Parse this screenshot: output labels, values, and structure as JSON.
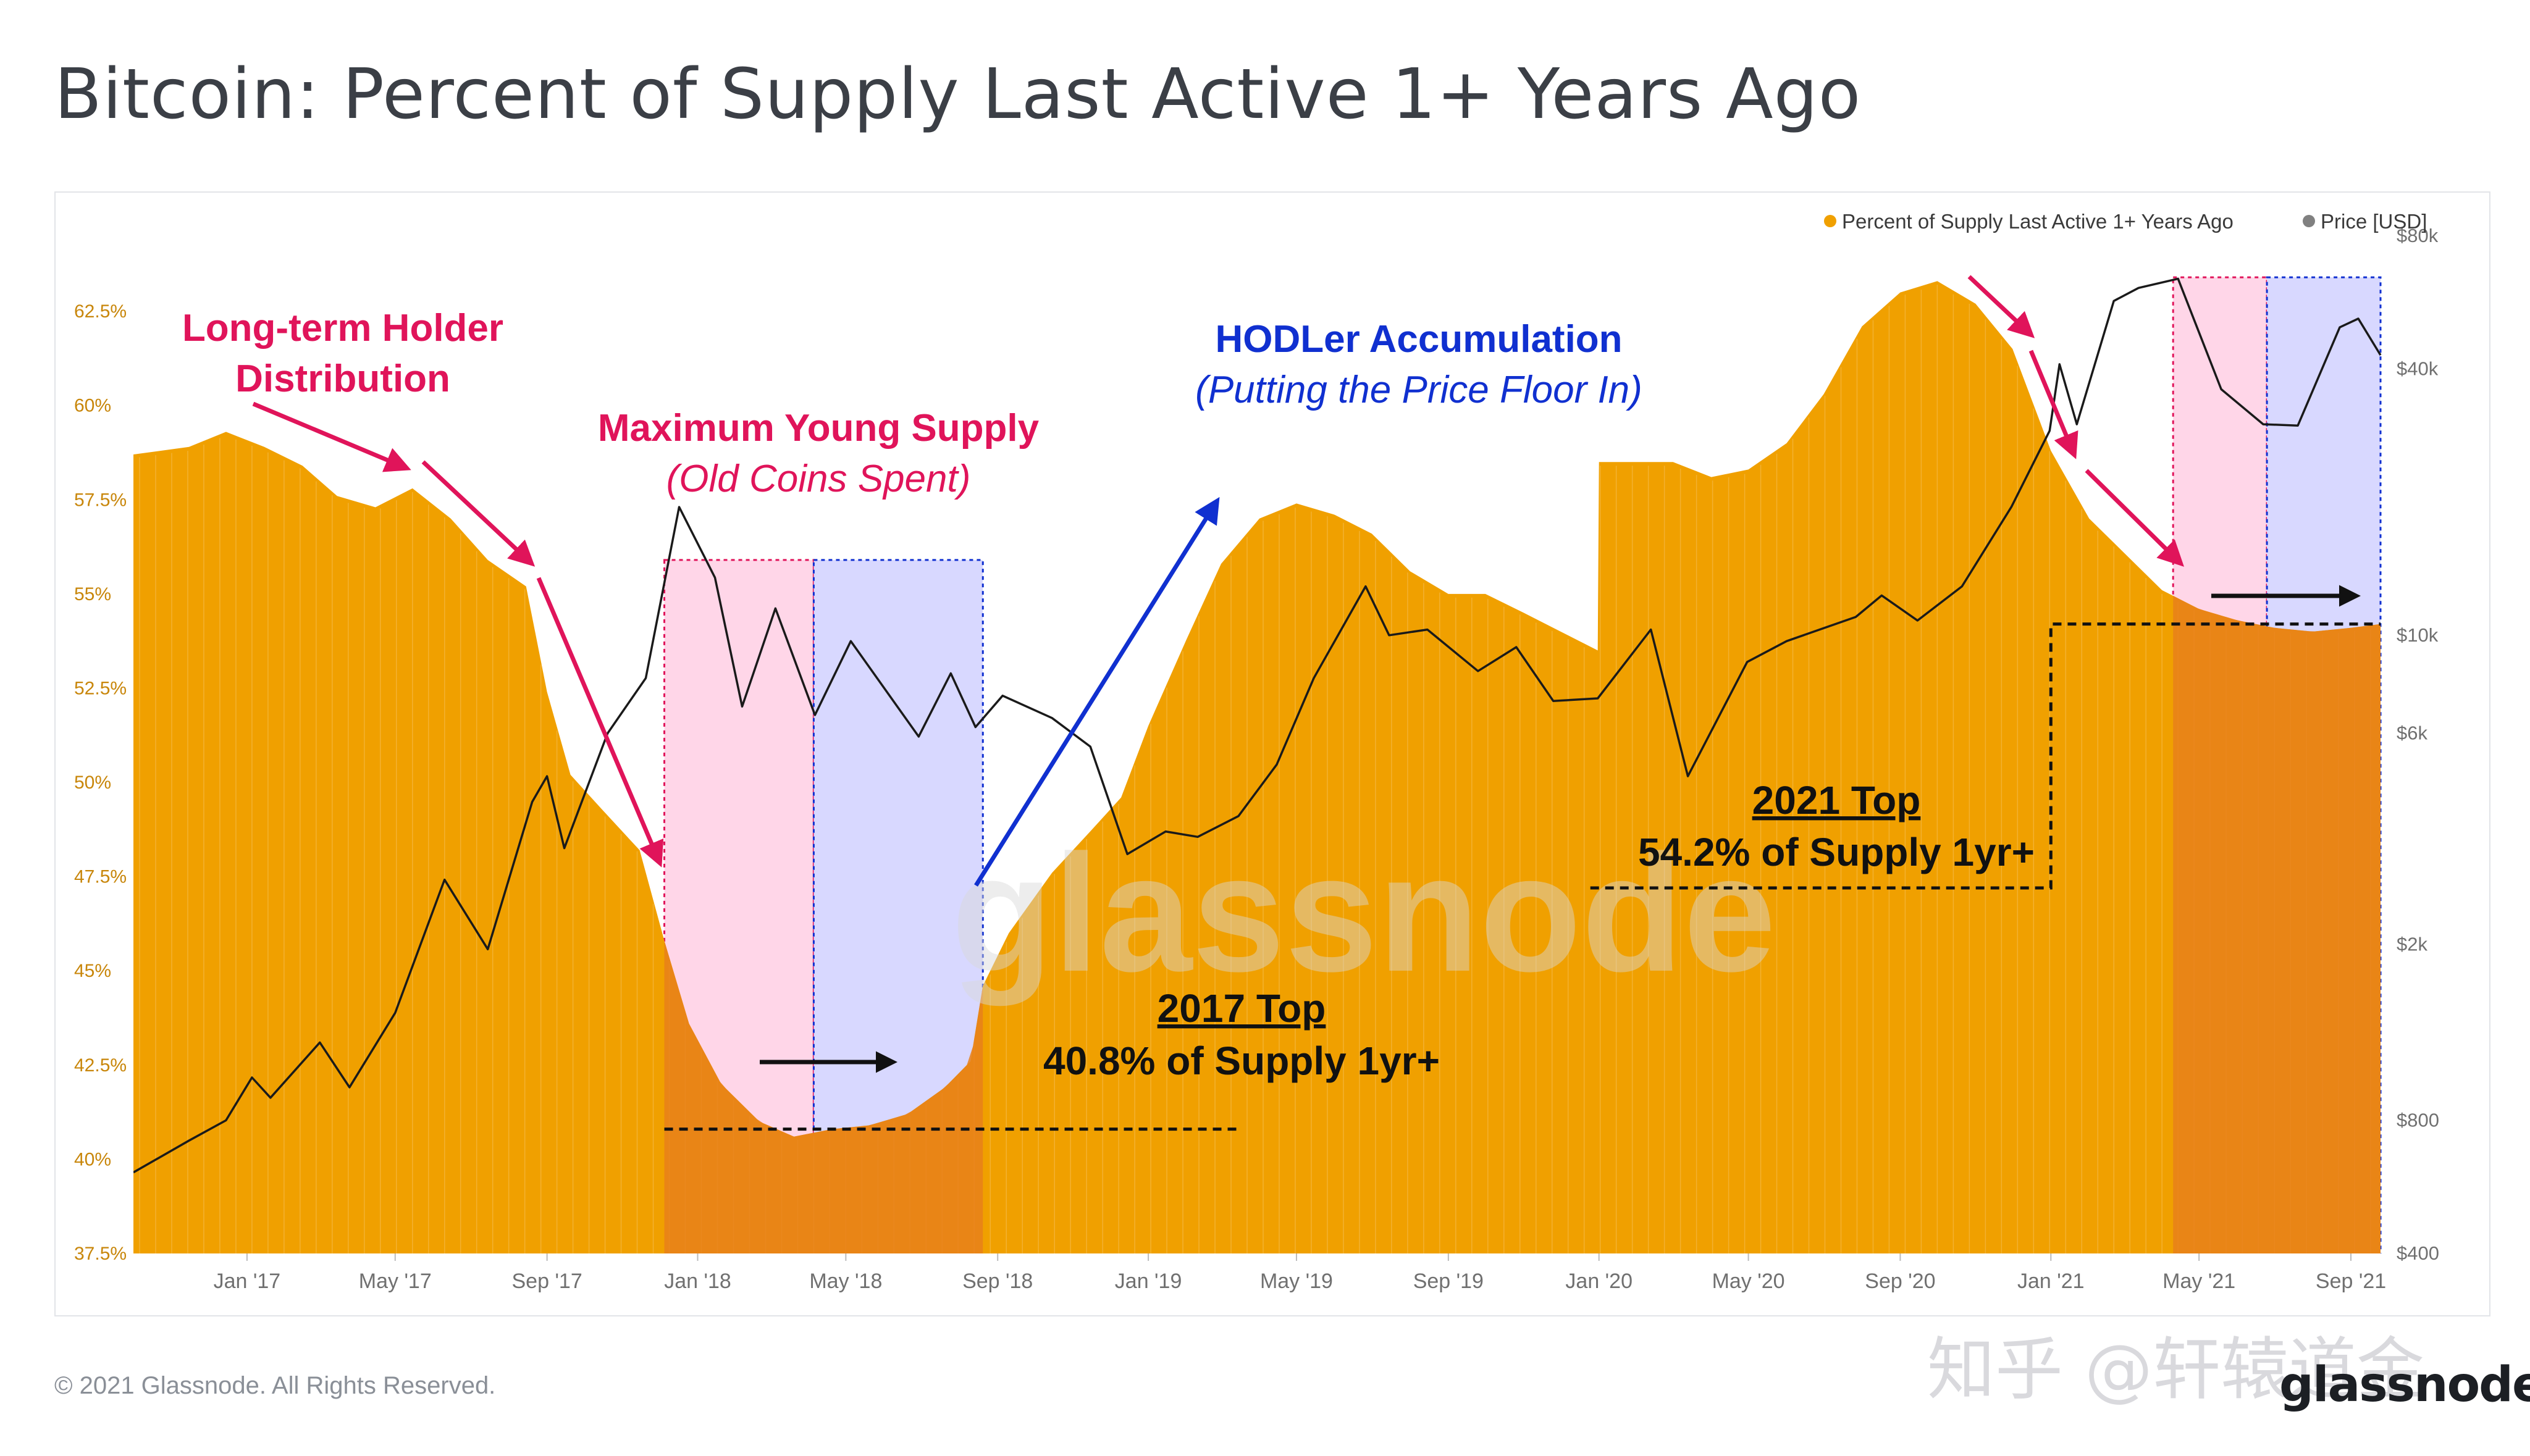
{
  "title": "Bitcoin: Percent of Supply Last Active 1+ Years Ago",
  "footer": {
    "copyright": "© 2021 Glassnode. All Rights Reserved.",
    "brand": "glassnode",
    "watermark": "知乎 @轩辕道金"
  },
  "colors": {
    "supply": "#f0a000",
    "price": "#1a1a1a",
    "pink_shade": "#ffd6e8",
    "blue_shade": "#d8d8ff",
    "pink_annotation": "#e0145a",
    "blue_annotation": "#1030d0",
    "orange_dark": "#e8801a",
    "axis_text": "#707070"
  },
  "chart_data": {
    "type": "area",
    "legend": {
      "position": "top-right",
      "entries": [
        {
          "label": "Percent of Supply Last Active 1+ Years Ago",
          "color": "#f0a000"
        },
        {
          "label": "Price [USD]",
          "color": "#808080"
        }
      ]
    },
    "x_ticks": [
      "Jan '17",
      "May '17",
      "Sep '17",
      "Jan '18",
      "May '18",
      "Sep '18",
      "Jan '19",
      "May '19",
      "Sep '19",
      "Jan '20",
      "May '20",
      "Sep '20",
      "Jan '21",
      "May '21",
      "Sep '21"
    ],
    "x_tick_dates": [
      "2017-01-01",
      "2017-05-01",
      "2017-09-01",
      "2018-01-01",
      "2018-05-01",
      "2018-09-01",
      "2019-01-01",
      "2019-05-01",
      "2019-09-01",
      "2020-01-01",
      "2020-05-01",
      "2020-09-01",
      "2021-01-01",
      "2021-05-01",
      "2021-09-01"
    ],
    "x_range": [
      "2016-10-01",
      "2021-10-01"
    ],
    "y_left": {
      "ticks": [
        "37.5%",
        "40%",
        "42.5%",
        "45%",
        "47.5%",
        "50%",
        "52.5%",
        "55%",
        "57.5%",
        "60%",
        "62.5%"
      ],
      "values": [
        37.5,
        40,
        42.5,
        45,
        47.5,
        50,
        52.5,
        55,
        57.5,
        60,
        62.5
      ],
      "range": [
        37.5,
        64.5
      ]
    },
    "y_right": {
      "scale": "log",
      "ticks": [
        "$400",
        "$800",
        "$2k",
        "$6k",
        "$10k",
        "$40k",
        "$80k"
      ],
      "values": [
        400,
        800,
        2000,
        6000,
        10000,
        40000,
        80000
      ],
      "range": [
        400,
        80000
      ]
    },
    "series": [
      {
        "name": "Percent of Supply Last Active 1+ Years Ago",
        "axis": "left",
        "type": "area",
        "points": [
          [
            "2016-10-01",
            58.7
          ],
          [
            "2016-11-15",
            58.9
          ],
          [
            "2016-12-15",
            59.3
          ],
          [
            "2017-01-15",
            58.9
          ],
          [
            "2017-02-15",
            58.4
          ],
          [
            "2017-03-15",
            57.6
          ],
          [
            "2017-04-15",
            57.3
          ],
          [
            "2017-05-15",
            57.8
          ],
          [
            "2017-06-15",
            57.0
          ],
          [
            "2017-07-15",
            55.9
          ],
          [
            "2017-08-15",
            55.2
          ],
          [
            "2017-09-01",
            52.4
          ],
          [
            "2017-09-20",
            50.2
          ],
          [
            "2017-10-15",
            49.3
          ],
          [
            "2017-11-15",
            48.2
          ],
          [
            "2017-12-05",
            45.8
          ],
          [
            "2017-12-25",
            43.6
          ],
          [
            "2018-01-20",
            42.0
          ],
          [
            "2018-02-20",
            41.0
          ],
          [
            "2018-03-20",
            40.6
          ],
          [
            "2018-04-20",
            40.8
          ],
          [
            "2018-05-20",
            40.9
          ],
          [
            "2018-06-20",
            41.2
          ],
          [
            "2018-07-20",
            41.9
          ],
          [
            "2018-08-10",
            42.6
          ],
          [
            "2018-08-20",
            44.6
          ],
          [
            "2018-09-10",
            46.0
          ],
          [
            "2018-10-15",
            47.6
          ],
          [
            "2018-11-15",
            48.7
          ],
          [
            "2018-12-10",
            49.6
          ],
          [
            "2019-01-01",
            51.5
          ],
          [
            "2019-02-01",
            53.8
          ],
          [
            "2019-03-01",
            55.8
          ],
          [
            "2019-04-01",
            57.0
          ],
          [
            "2019-05-01",
            57.4
          ],
          [
            "2019-06-01",
            57.1
          ],
          [
            "2019-07-01",
            56.6
          ],
          [
            "2019-08-01",
            55.6
          ],
          [
            "2019-09-01",
            55.0
          ],
          [
            "2019-10-01",
            55.0
          ],
          [
            "2019-11-01",
            54.5
          ],
          [
            "2019-12-01",
            54.0
          ],
          [
            "2019-12-31",
            53.5
          ],
          [
            "2020-01-01",
            58.5
          ],
          [
            "2020-02-01",
            58.5
          ],
          [
            "2020-03-01",
            58.5
          ],
          [
            "2020-04-01",
            58.1
          ],
          [
            "2020-05-01",
            58.3
          ],
          [
            "2020-06-01",
            59.0
          ],
          [
            "2020-07-01",
            60.3
          ],
          [
            "2020-08-01",
            62.1
          ],
          [
            "2020-09-01",
            63.0
          ],
          [
            "2020-10-01",
            63.3
          ],
          [
            "2020-11-01",
            62.7
          ],
          [
            "2020-12-01",
            61.5
          ],
          [
            "2021-01-01",
            58.8
          ],
          [
            "2021-02-01",
            57.0
          ],
          [
            "2021-03-01",
            56.1
          ],
          [
            "2021-04-01",
            55.1
          ],
          [
            "2021-05-01",
            54.6
          ],
          [
            "2021-06-01",
            54.3
          ],
          [
            "2021-07-01",
            54.1
          ],
          [
            "2021-08-01",
            54.0
          ],
          [
            "2021-09-01",
            54.1
          ],
          [
            "2021-09-25",
            54.2
          ]
        ]
      },
      {
        "name": "Price [USD]",
        "axis": "right",
        "type": "line",
        "points": [
          [
            "2016-10-01",
            610
          ],
          [
            "2016-11-15",
            720
          ],
          [
            "2016-12-15",
            800
          ],
          [
            "2017-01-05",
            1000
          ],
          [
            "2017-01-20",
            900
          ],
          [
            "2017-03-01",
            1200
          ],
          [
            "2017-03-25",
            950
          ],
          [
            "2017-05-01",
            1400
          ],
          [
            "2017-06-10",
            2800
          ],
          [
            "2017-07-15",
            1950
          ],
          [
            "2017-08-20",
            4200
          ],
          [
            "2017-09-01",
            4800
          ],
          [
            "2017-09-15",
            3300
          ],
          [
            "2017-10-20",
            6000
          ],
          [
            "2017-11-20",
            8000
          ],
          [
            "2017-12-17",
            19500
          ],
          [
            "2018-01-15",
            13500
          ],
          [
            "2018-02-06",
            6900
          ],
          [
            "2018-03-05",
            11500
          ],
          [
            "2018-04-06",
            6600
          ],
          [
            "2018-05-05",
            9700
          ],
          [
            "2018-06-29",
            5900
          ],
          [
            "2018-07-25",
            8200
          ],
          [
            "2018-08-14",
            6200
          ],
          [
            "2018-09-05",
            7300
          ],
          [
            "2018-10-15",
            6500
          ],
          [
            "2018-11-15",
            5600
          ],
          [
            "2018-12-15",
            3200
          ],
          [
            "2019-01-15",
            3600
          ],
          [
            "2019-02-10",
            3500
          ],
          [
            "2019-03-15",
            3900
          ],
          [
            "2019-04-15",
            5100
          ],
          [
            "2019-05-15",
            8000
          ],
          [
            "2019-06-26",
            12900
          ],
          [
            "2019-07-15",
            10000
          ],
          [
            "2019-08-15",
            10300
          ],
          [
            "2019-09-25",
            8300
          ],
          [
            "2019-10-26",
            9400
          ],
          [
            "2019-11-25",
            7100
          ],
          [
            "2019-12-31",
            7200
          ],
          [
            "2020-02-12",
            10300
          ],
          [
            "2020-03-13",
            4800
          ],
          [
            "2020-04-30",
            8700
          ],
          [
            "2020-06-01",
            9700
          ],
          [
            "2020-07-27",
            11000
          ],
          [
            "2020-08-17",
            12300
          ],
          [
            "2020-09-15",
            10800
          ],
          [
            "2020-10-21",
            12900
          ],
          [
            "2020-11-30",
            19500
          ],
          [
            "2020-12-31",
            29000
          ],
          [
            "2021-01-08",
            41000
          ],
          [
            "2021-01-22",
            30000
          ],
          [
            "2021-02-21",
            57000
          ],
          [
            "2021-03-13",
            61000
          ],
          [
            "2021-04-14",
            64000
          ],
          [
            "2021-05-19",
            36000
          ],
          [
            "2021-06-22",
            30000
          ],
          [
            "2021-07-20",
            29800
          ],
          [
            "2021-08-23",
            49700
          ],
          [
            "2021-09-07",
            52000
          ],
          [
            "2021-09-25",
            43000
          ]
        ]
      }
    ],
    "annotations": {
      "ltd_line1": "Long-term Holder",
      "ltd_line2": "Distribution",
      "mys_line1": "Maximum Young Supply",
      "mys_line2": "(Old Coins Spent)",
      "hodl_line1": "HODLer Accumulation",
      "hodl_line2": "(Putting the Price Floor In)",
      "top2017_line1": "2017 Top",
      "top2017_line2": "40.8% of Supply 1yr+",
      "top2021_line1": "2021 Top",
      "top2021_line2": "54.2% of Supply 1yr+",
      "top2017_value": 40.8,
      "top2021_value": 54.2
    }
  }
}
